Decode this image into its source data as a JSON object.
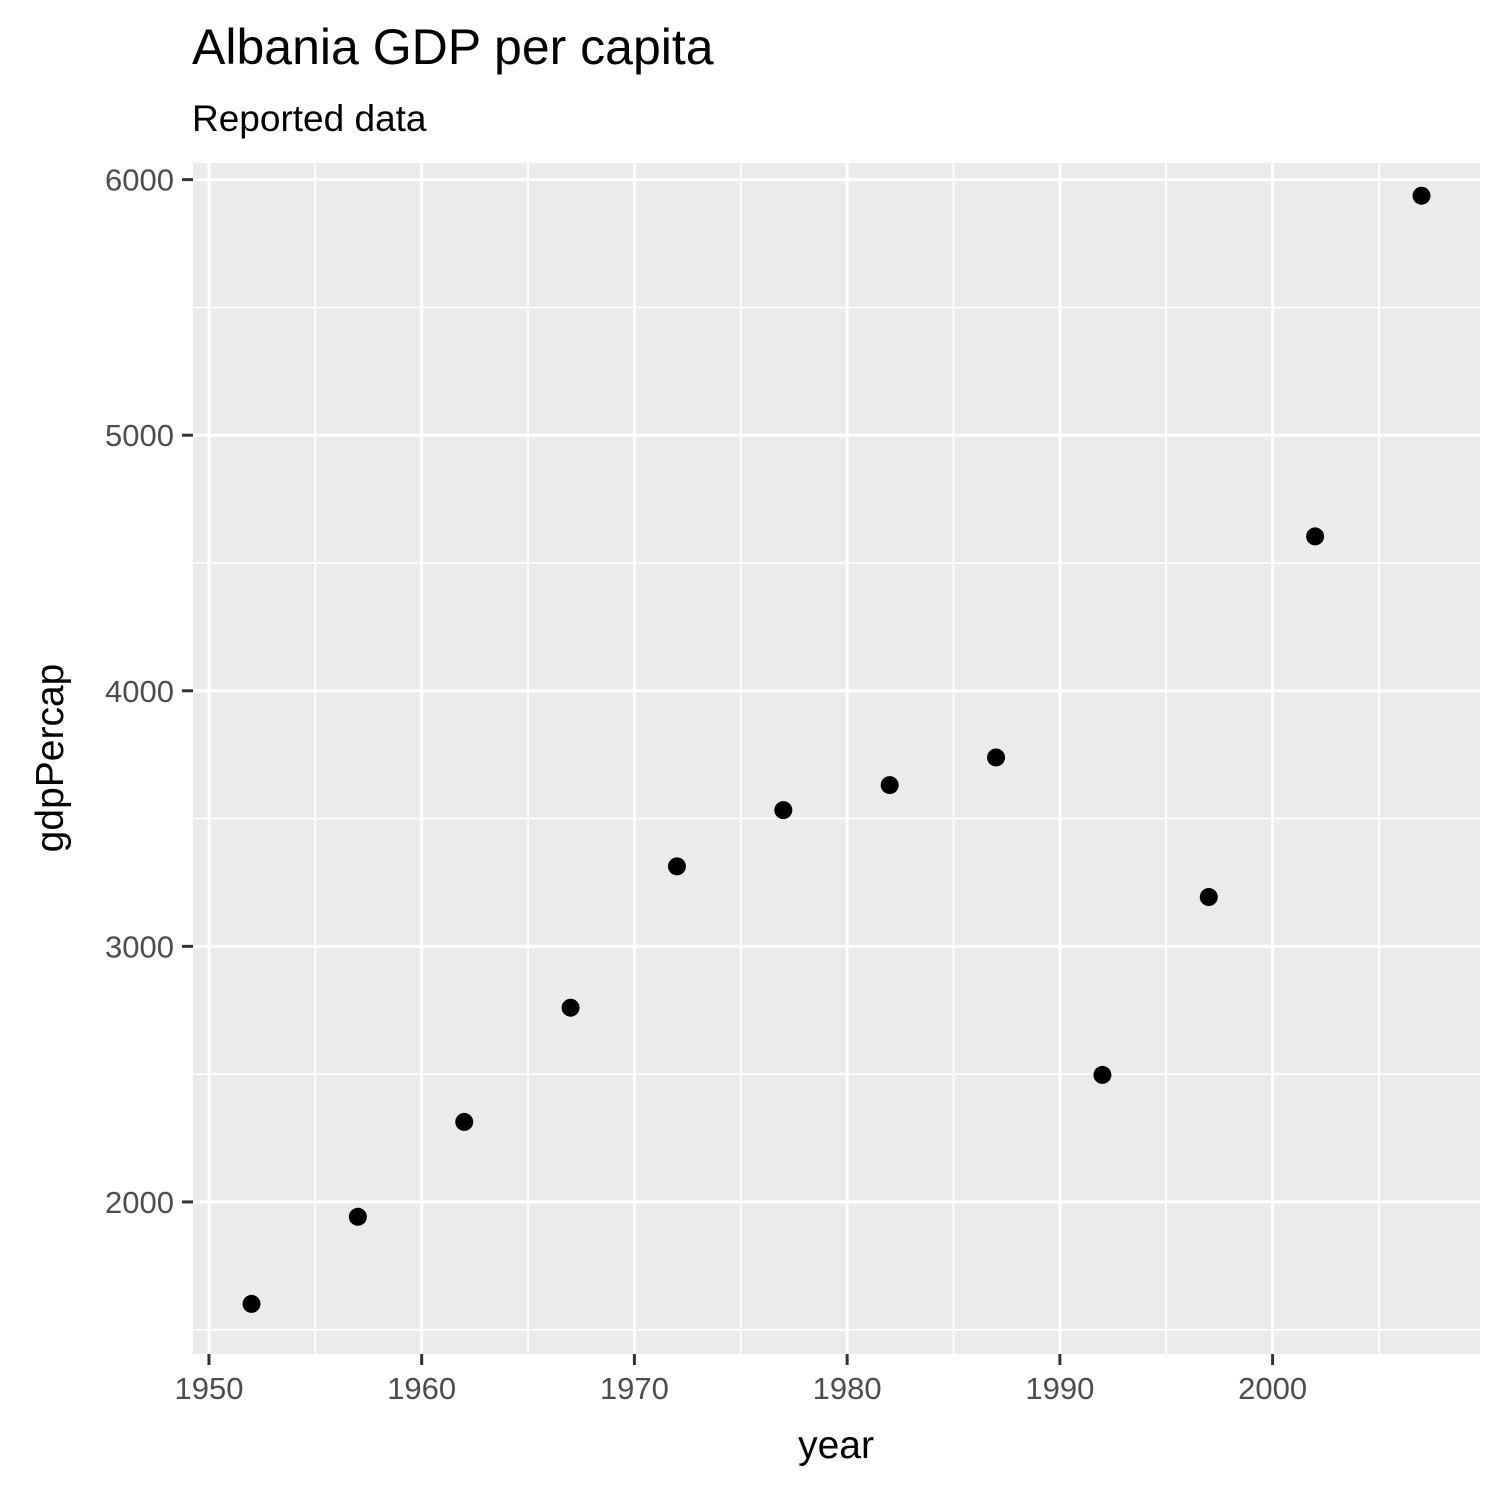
{
  "chart_data": {
    "type": "scatter",
    "title": "Albania GDP per capita",
    "subtitle": "Reported data",
    "xlabel": "year",
    "ylabel": "gdpPercap",
    "xlim": [
      1949.25,
      2009.75
    ],
    "ylim": [
      1405,
      6065
    ],
    "x_ticks": [
      1950,
      1960,
      1970,
      1980,
      1990,
      2000
    ],
    "x_minor_ticks": [
      1955,
      1965,
      1975,
      1985,
      1995,
      2005
    ],
    "y_ticks": [
      2000,
      3000,
      4000,
      5000,
      6000
    ],
    "y_minor_ticks": [
      1500,
      2500,
      3500,
      4500,
      5500
    ],
    "grid": true,
    "legend": "none",
    "point_color": "#000000",
    "panel_color": "#EBEBEB",
    "grid_color": "#FFFFFF",
    "points": [
      {
        "x": 1952,
        "y": 1601
      },
      {
        "x": 1957,
        "y": 1942
      },
      {
        "x": 1962,
        "y": 2313
      },
      {
        "x": 1967,
        "y": 2760
      },
      {
        "x": 1972,
        "y": 3313
      },
      {
        "x": 1977,
        "y": 3533
      },
      {
        "x": 1982,
        "y": 3631
      },
      {
        "x": 1987,
        "y": 3739
      },
      {
        "x": 1992,
        "y": 2497
      },
      {
        "x": 1997,
        "y": 3193
      },
      {
        "x": 2002,
        "y": 4604
      },
      {
        "x": 2007,
        "y": 5937
      }
    ]
  }
}
